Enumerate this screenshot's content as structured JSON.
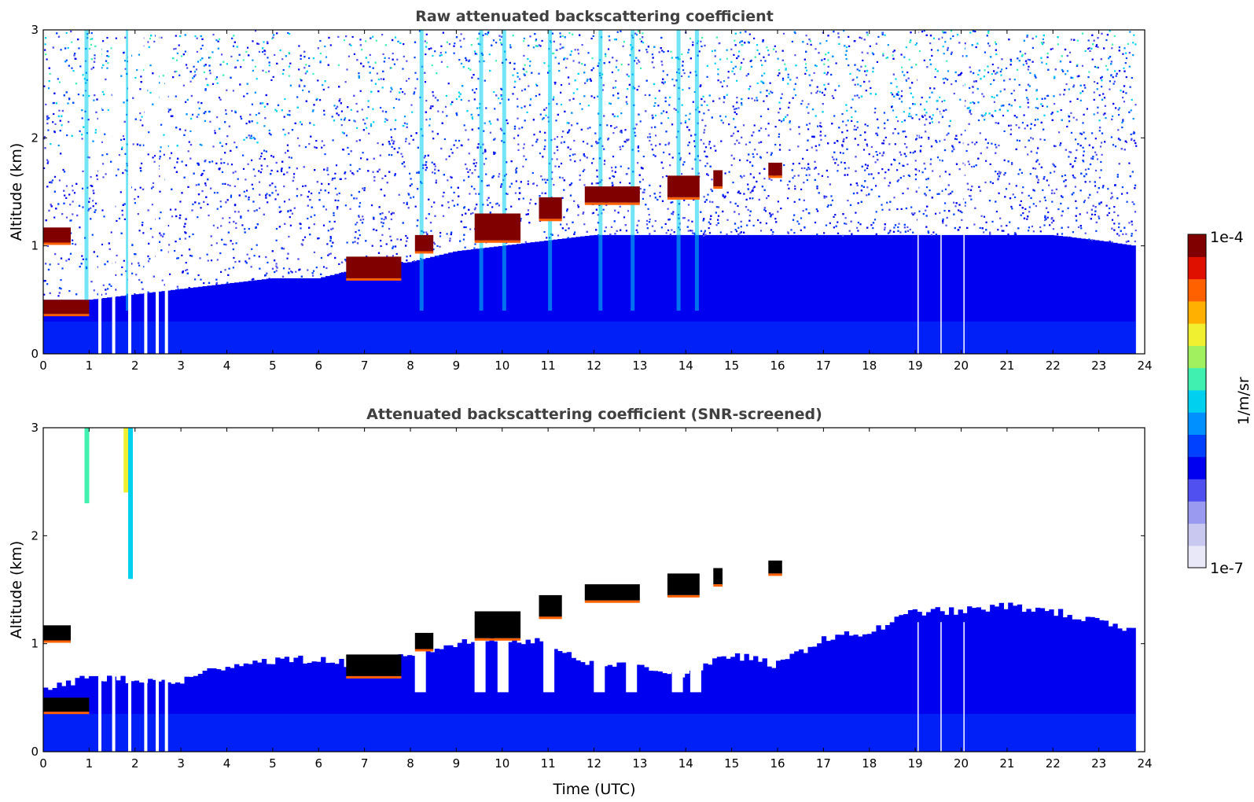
{
  "chart_data": [
    {
      "type": "heatmap",
      "title": "Raw attenuated backscattering coefficient",
      "xlabel": "",
      "ylabel": "Altitude (km)",
      "xlim": [
        0,
        24
      ],
      "ylim": [
        0,
        3
      ],
      "x_ticks": [
        "0",
        "1",
        "2",
        "3",
        "4",
        "5",
        "6",
        "7",
        "8",
        "9",
        "10",
        "11",
        "12",
        "13",
        "14",
        "15",
        "16",
        "17",
        "18",
        "19",
        "20",
        "21",
        "22",
        "23",
        "24"
      ],
      "y_ticks": [
        "0",
        "1",
        "2",
        "3"
      ],
      "boundary_layer_top_km": {
        "x": [
          0,
          1,
          2,
          3,
          4,
          5,
          6,
          7,
          8,
          9,
          10,
          11,
          12,
          13,
          14,
          15,
          16,
          17,
          18,
          19,
          20,
          21,
          22,
          23,
          23.8
        ],
        "y": [
          0.5,
          0.5,
          0.55,
          0.6,
          0.65,
          0.7,
          0.7,
          0.8,
          0.85,
          0.95,
          1.0,
          1.05,
          1.1,
          1.1,
          1.1,
          1.1,
          1.1,
          1.1,
          1.1,
          1.1,
          1.1,
          1.1,
          1.1,
          1.05,
          1.0
        ]
      },
      "cloud_layers_km": [
        {
          "x": [
            0,
            0.6
          ],
          "y": [
            1.08,
            1.12
          ]
        },
        {
          "x": [
            0,
            1.0
          ],
          "y": [
            0.42,
            0.45
          ]
        },
        {
          "x": [
            6.6,
            7.8
          ],
          "y": [
            0.75,
            0.85
          ]
        },
        {
          "x": [
            8.1,
            8.5
          ],
          "y": [
            1.0,
            1.05
          ]
        },
        {
          "x": [
            9.4,
            10.4
          ],
          "y": [
            1.1,
            1.25
          ]
        },
        {
          "x": [
            10.8,
            11.3
          ],
          "y": [
            1.3,
            1.4
          ]
        },
        {
          "x": [
            11.8,
            13.0
          ],
          "y": [
            1.45,
            1.5
          ]
        },
        {
          "x": [
            13.6,
            14.3
          ],
          "y": [
            1.5,
            1.6
          ]
        },
        {
          "x": [
            14.6,
            14.8
          ],
          "y": [
            1.6,
            1.65
          ]
        },
        {
          "x": [
            15.8,
            16.1
          ],
          "y": [
            1.7,
            1.72
          ]
        }
      ],
      "precipitation_streaks_utc": [
        0.9,
        1.8,
        8.2,
        9.5,
        10.0,
        11.0,
        12.1,
        12.8,
        13.8,
        14.2
      ],
      "missing_data_columns_utc": [
        1.2,
        1.5,
        1.85,
        2.2,
        2.45,
        2.65,
        19.05,
        19.55,
        20.05
      ]
    },
    {
      "type": "heatmap",
      "title": "Attenuated backscattering coefficient (SNR-screened)",
      "xlabel": "Time (UTC)",
      "ylabel": "Altitude (km)",
      "xlim": [
        0,
        24
      ],
      "ylim": [
        0,
        3
      ],
      "x_ticks": [
        "0",
        "1",
        "2",
        "3",
        "4",
        "5",
        "6",
        "7",
        "8",
        "9",
        "10",
        "11",
        "12",
        "13",
        "14",
        "15",
        "16",
        "17",
        "18",
        "19",
        "20",
        "21",
        "22",
        "23",
        "24"
      ],
      "y_ticks": [
        "0",
        "1",
        "2",
        "3"
      ],
      "screened_top_km": {
        "x": [
          0,
          1,
          2,
          3,
          4,
          5,
          6,
          7,
          8,
          9,
          10,
          11,
          12,
          13,
          14,
          15,
          16,
          17,
          18,
          19,
          20,
          21,
          22,
          23,
          23.8
        ],
        "y": [
          0.55,
          0.7,
          0.65,
          0.65,
          0.8,
          0.85,
          0.85,
          0.8,
          0.9,
          1.0,
          1.05,
          1.0,
          0.8,
          0.8,
          0.7,
          0.9,
          0.8,
          1.05,
          1.1,
          1.3,
          1.3,
          1.35,
          1.3,
          1.2,
          1.1
        ]
      }
    }
  ],
  "colorbar": {
    "label": "1/m/sr",
    "min_label": "1e-7",
    "max_label": "1e-4",
    "colors": [
      "#e8e8f8",
      "#c8c8f0",
      "#9a9af0",
      "#5050f0",
      "#0000f0",
      "#0040ff",
      "#0090ff",
      "#00d0f0",
      "#40f0b0",
      "#a0f060",
      "#f0f030",
      "#ffb000",
      "#ff6000",
      "#e01000",
      "#800000"
    ]
  }
}
